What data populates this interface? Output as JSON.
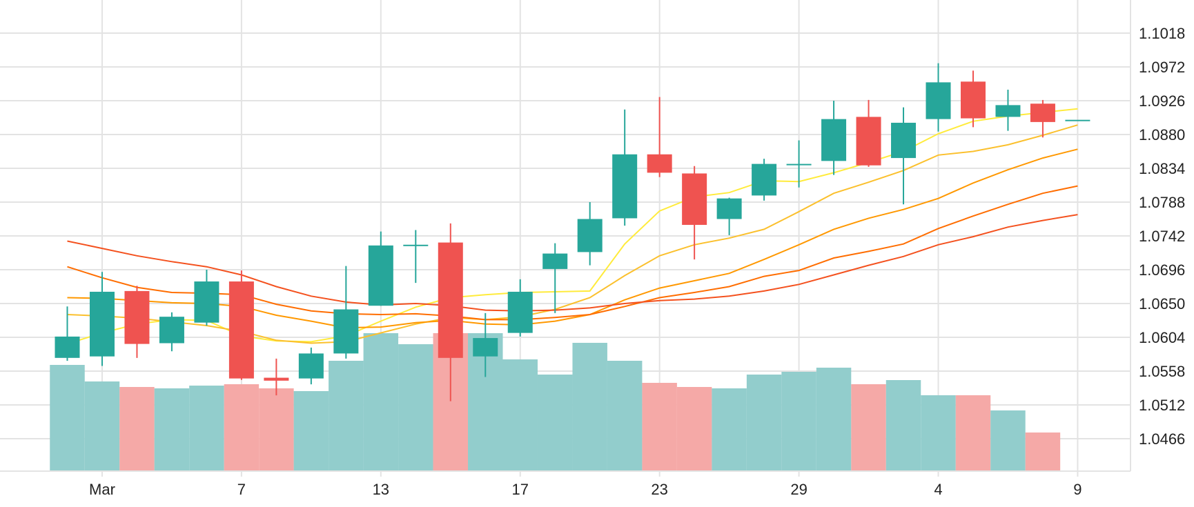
{
  "chart_data": {
    "type": "candlestick",
    "x_tick_labels": [
      "Mar",
      "7",
      "13",
      "17",
      "23",
      "29",
      "4",
      "9"
    ],
    "y_tick_labels": [
      "1.1018",
      "1.0972",
      "1.0926",
      "1.0880",
      "1.0834",
      "1.0788",
      "1.0742",
      "1.0696",
      "1.0650",
      "1.0604",
      "1.0558",
      "1.0512",
      "1.0466"
    ],
    "ylim": [
      1.0422,
      1.1064
    ],
    "grid": true,
    "y_axis_position": "right",
    "colors": {
      "up": "#26a69a",
      "down": "#ef5350",
      "volume_up": "#92cdcc",
      "volume_down": "#f5a9a7",
      "grid": "#e3e3e3"
    },
    "candles": [
      {
        "date": "2020-02-28",
        "open": 1.0576,
        "high": 1.0646,
        "low": 1.0572,
        "close": 1.0605
      },
      {
        "date": "2020-03-02",
        "open": 1.0578,
        "high": 1.0693,
        "low": 1.0565,
        "close": 1.0666
      },
      {
        "date": "2020-03-03",
        "open": 1.0667,
        "high": 1.0674,
        "low": 1.0576,
        "close": 1.0595
      },
      {
        "date": "2020-03-04",
        "open": 1.0596,
        "high": 1.0638,
        "low": 1.0585,
        "close": 1.0632
      },
      {
        "date": "2020-03-05",
        "open": 1.0624,
        "high": 1.0696,
        "low": 1.062,
        "close": 1.068
      },
      {
        "date": "2020-03-06",
        "open": 1.068,
        "high": 1.0695,
        "low": 1.0546,
        "close": 1.0548
      },
      {
        "date": "2020-03-09",
        "open": 1.0549,
        "high": 1.0575,
        "low": 1.0525,
        "close": 1.0545
      },
      {
        "date": "2020-03-10",
        "open": 1.0548,
        "high": 1.059,
        "low": 1.054,
        "close": 1.0582
      },
      {
        "date": "2020-03-11",
        "open": 1.0582,
        "high": 1.0701,
        "low": 1.0575,
        "close": 1.0642
      },
      {
        "date": "2020-03-12",
        "open": 1.0647,
        "high": 1.0748,
        "low": 1.0647,
        "close": 1.0729
      },
      {
        "date": "2020-03-13",
        "open": 1.073,
        "high": 1.075,
        "low": 1.0678,
        "close": 1.073
      },
      {
        "date": "2020-03-16",
        "open": 1.0733,
        "high": 1.0759,
        "low": 1.0517,
        "close": 1.0576
      },
      {
        "date": "2020-03-17",
        "open": 1.0578,
        "high": 1.0637,
        "low": 1.055,
        "close": 1.0603
      },
      {
        "date": "2020-03-18",
        "open": 1.061,
        "high": 1.0683,
        "low": 1.0605,
        "close": 1.0666
      },
      {
        "date": "2020-03-19",
        "open": 1.0697,
        "high": 1.0732,
        "low": 1.0637,
        "close": 1.0718
      },
      {
        "date": "2020-03-20",
        "open": 1.072,
        "high": 1.0788,
        "low": 1.0702,
        "close": 1.0765
      },
      {
        "date": "2020-03-23",
        "open": 1.0766,
        "high": 1.0914,
        "low": 1.0756,
        "close": 1.0853
      },
      {
        "date": "2020-03-24",
        "open": 1.0853,
        "high": 1.0931,
        "low": 1.0822,
        "close": 1.0828
      },
      {
        "date": "2020-03-25",
        "open": 1.0827,
        "high": 1.0837,
        "low": 1.071,
        "close": 1.0757
      },
      {
        "date": "2020-03-26",
        "open": 1.0765,
        "high": 1.0794,
        "low": 1.0743,
        "close": 1.0793
      },
      {
        "date": "2020-03-27",
        "open": 1.0797,
        "high": 1.0847,
        "low": 1.079,
        "close": 1.084
      },
      {
        "date": "2020-03-30",
        "open": 1.084,
        "high": 1.0872,
        "low": 1.0808,
        "close": 1.084
      },
      {
        "date": "2020-03-31",
        "open": 1.0844,
        "high": 1.0926,
        "low": 1.0825,
        "close": 1.0901
      },
      {
        "date": "2020-04-01",
        "open": 1.0904,
        "high": 1.0927,
        "low": 1.0836,
        "close": 1.0838
      },
      {
        "date": "2020-04-02",
        "open": 1.0848,
        "high": 1.0917,
        "low": 1.0785,
        "close": 1.0896
      },
      {
        "date": "2020-04-03",
        "open": 1.0901,
        "high": 1.0977,
        "low": 1.0884,
        "close": 1.0951
      },
      {
        "date": "2020-04-06",
        "open": 1.0952,
        "high": 1.0967,
        "low": 1.089,
        "close": 1.0902
      },
      {
        "date": "2020-04-07",
        "open": 1.0904,
        "high": 1.0941,
        "low": 1.0885,
        "close": 1.092
      },
      {
        "date": "2020-04-08",
        "open": 1.0922,
        "high": 1.0927,
        "low": 1.0876,
        "close": 1.0897
      },
      {
        "date": "2020-04-09",
        "open": 1.09,
        "high": 1.09,
        "low": 1.09,
        "close": 1.09
      }
    ],
    "volume_relative": [
      0.77,
      0.65,
      0.61,
      0.6,
      0.62,
      0.63,
      0.6,
      0.58,
      0.8,
      1.0,
      0.92,
      1.0,
      1.0,
      0.81,
      0.7,
      0.93,
      0.8,
      0.64,
      0.61,
      0.6,
      0.7,
      0.72,
      0.75,
      0.63,
      0.66,
      0.55,
      0.55,
      0.44,
      0.28,
      0
    ],
    "moving_averages": [
      {
        "color": "#ffeb3b",
        "values": [
          1.0595,
          1.061,
          1.0622,
          1.0628,
          1.0627,
          1.0606,
          1.0599,
          1.0598,
          1.0606,
          1.0626,
          1.0645,
          1.0658,
          1.0662,
          1.0665,
          1.0666,
          1.0667,
          1.0731,
          1.0776,
          1.0795,
          1.0801,
          1.0817,
          1.0816,
          1.0828,
          1.0842,
          1.0857,
          1.0881,
          1.0898,
          1.0905,
          1.091,
          1.0915
        ]
      },
      {
        "color": "#fbc02d",
        "values": [
          1.0635,
          1.0633,
          1.063,
          1.0625,
          1.062,
          1.0612,
          1.06,
          1.0596,
          1.0598,
          1.061,
          1.0622,
          1.0631,
          1.0628,
          1.0632,
          1.0642,
          1.0658,
          1.0688,
          1.0715,
          1.073,
          1.0739,
          1.0751,
          1.0775,
          1.08,
          1.0815,
          1.0831,
          1.0852,
          1.0857,
          1.0866,
          1.0879,
          1.0893
        ]
      },
      {
        "color": "#ff9800",
        "values": [
          1.0658,
          1.0657,
          1.0654,
          1.0651,
          1.065,
          1.0646,
          1.0634,
          1.0626,
          1.0617,
          1.0618,
          1.0624,
          1.0627,
          1.0622,
          1.0621,
          1.0626,
          1.0635,
          1.0655,
          1.0671,
          1.0681,
          1.0691,
          1.071,
          1.073,
          1.0751,
          1.0766,
          1.0778,
          1.0793,
          1.0814,
          1.0832,
          1.0848,
          1.086
        ]
      },
      {
        "color": "#ff6d00",
        "values": [
          1.07,
          1.0685,
          1.0672,
          1.0665,
          1.0664,
          1.0662,
          1.0649,
          1.064,
          1.0636,
          1.0635,
          1.0636,
          1.0633,
          1.0628,
          1.0628,
          1.0631,
          1.0635,
          1.0646,
          1.0658,
          1.0665,
          1.0673,
          1.0687,
          1.0695,
          1.0712,
          1.0721,
          1.0731,
          1.0752,
          1.0769,
          1.0785,
          1.08,
          1.081
        ]
      },
      {
        "color": "#f4511e",
        "values": [
          1.0735,
          1.0725,
          1.0715,
          1.0707,
          1.07,
          1.0689,
          1.0673,
          1.066,
          1.0652,
          1.0648,
          1.065,
          1.0647,
          1.0641,
          1.064,
          1.0641,
          1.0644,
          1.065,
          1.0654,
          1.0656,
          1.066,
          1.0667,
          1.0676,
          1.0689,
          1.0702,
          1.0714,
          1.073,
          1.0741,
          1.0754,
          1.0763,
          1.0771
        ]
      }
    ]
  }
}
